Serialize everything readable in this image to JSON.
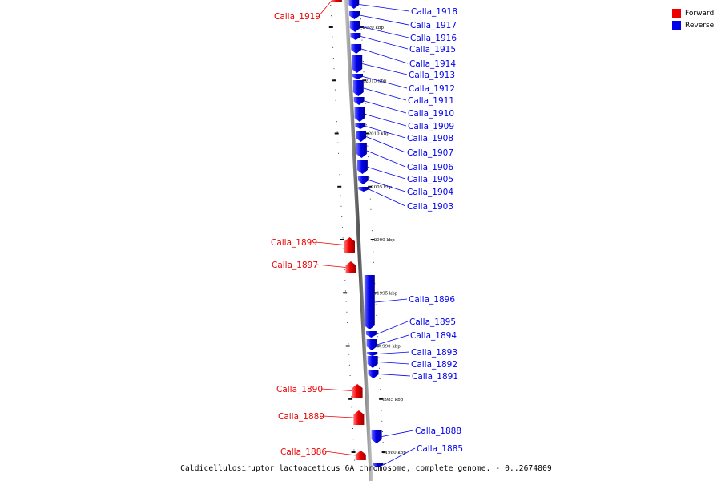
{
  "legend": {
    "forward": {
      "label": "Forward",
      "color": "#ee0000"
    },
    "reverse": {
      "label": "Reverse",
      "color": "#0000ee"
    }
  },
  "caption": "Caldicellulosiruptor lactoaceticus 6A chromosome, complete genome. - 0..2674809",
  "ticks": [
    {
      "label": "2020 kbp",
      "kbp": 2020
    },
    {
      "label": "2015 kbp",
      "kbp": 2015
    },
    {
      "label": "2010 kbp",
      "kbp": 2010
    },
    {
      "label": "2005 kbp",
      "kbp": 2005
    },
    {
      "label": "2000 kbp",
      "kbp": 2000
    },
    {
      "label": "1995 kbp",
      "kbp": 1995
    },
    {
      "label": "1990 kbp",
      "kbp": 1990
    },
    {
      "label": "1985 kbp",
      "kbp": 1985
    },
    {
      "label": "1980 kbp",
      "kbp": 1980
    }
  ],
  "genes": [
    {
      "name": "Calla_1919",
      "strand": "forward"
    },
    {
      "name": "Calla_1918",
      "strand": "reverse"
    },
    {
      "name": "Calla_1917",
      "strand": "reverse"
    },
    {
      "name": "Calla_1916",
      "strand": "reverse"
    },
    {
      "name": "Calla_1915",
      "strand": "reverse"
    },
    {
      "name": "Calla_1914",
      "strand": "reverse"
    },
    {
      "name": "Calla_1913",
      "strand": "reverse"
    },
    {
      "name": "Calla_1912",
      "strand": "reverse"
    },
    {
      "name": "Calla_1911",
      "strand": "reverse"
    },
    {
      "name": "Calla_1910",
      "strand": "reverse"
    },
    {
      "name": "Calla_1909",
      "strand": "reverse"
    },
    {
      "name": "Calla_1908",
      "strand": "reverse"
    },
    {
      "name": "Calla_1907",
      "strand": "reverse"
    },
    {
      "name": "Calla_1906",
      "strand": "reverse"
    },
    {
      "name": "Calla_1905",
      "strand": "reverse"
    },
    {
      "name": "Calla_1904",
      "strand": "reverse"
    },
    {
      "name": "Calla_1903",
      "strand": "reverse"
    },
    {
      "name": "Calla_1899",
      "strand": "forward"
    },
    {
      "name": "Calla_1897",
      "strand": "forward"
    },
    {
      "name": "Calla_1896",
      "strand": "reverse"
    },
    {
      "name": "Calla_1895",
      "strand": "reverse"
    },
    {
      "name": "Calla_1894",
      "strand": "reverse"
    },
    {
      "name": "Calla_1893",
      "strand": "reverse"
    },
    {
      "name": "Calla_1892",
      "strand": "reverse"
    },
    {
      "name": "Calla_1891",
      "strand": "reverse"
    },
    {
      "name": "Calla_1890",
      "strand": "forward"
    },
    {
      "name": "Calla_1889",
      "strand": "forward"
    },
    {
      "name": "Calla_1888",
      "strand": "reverse"
    },
    {
      "name": "Calla_1886",
      "strand": "forward"
    },
    {
      "name": "Calla_1885",
      "strand": "reverse"
    }
  ]
}
